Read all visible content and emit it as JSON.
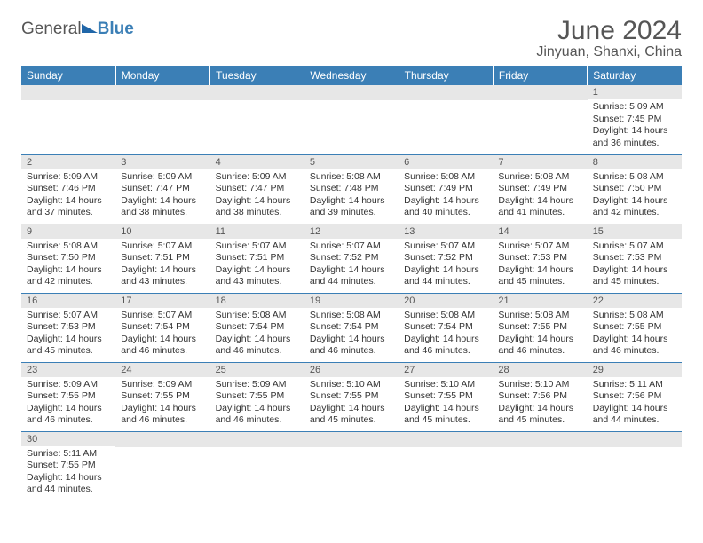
{
  "brand": {
    "part1": "General",
    "part2": "Blue"
  },
  "title": "June 2024",
  "location": "Jinyuan, Shanxi, China",
  "colors": {
    "header_bg": "#3b7fb6",
    "header_text": "#ffffff",
    "daynum_bg": "#e7e7e7",
    "cell_border": "#3b7fb6",
    "text": "#333333",
    "title_text": "#555555"
  },
  "typography": {
    "title_fontsize": 30,
    "location_fontsize": 16,
    "header_fontsize": 12,
    "daynum_fontsize": 11,
    "body_fontsize": 10.5
  },
  "dayHeaders": [
    "Sunday",
    "Monday",
    "Tuesday",
    "Wednesday",
    "Thursday",
    "Friday",
    "Saturday"
  ],
  "weeks": [
    [
      {
        "day": "",
        "sunrise": "",
        "sunset": "",
        "daylight": ""
      },
      {
        "day": "",
        "sunrise": "",
        "sunset": "",
        "daylight": ""
      },
      {
        "day": "",
        "sunrise": "",
        "sunset": "",
        "daylight": ""
      },
      {
        "day": "",
        "sunrise": "",
        "sunset": "",
        "daylight": ""
      },
      {
        "day": "",
        "sunrise": "",
        "sunset": "",
        "daylight": ""
      },
      {
        "day": "",
        "sunrise": "",
        "sunset": "",
        "daylight": ""
      },
      {
        "day": "1",
        "sunrise": "Sunrise: 5:09 AM",
        "sunset": "Sunset: 7:45 PM",
        "daylight": "Daylight: 14 hours and 36 minutes."
      }
    ],
    [
      {
        "day": "2",
        "sunrise": "Sunrise: 5:09 AM",
        "sunset": "Sunset: 7:46 PM",
        "daylight": "Daylight: 14 hours and 37 minutes."
      },
      {
        "day": "3",
        "sunrise": "Sunrise: 5:09 AM",
        "sunset": "Sunset: 7:47 PM",
        "daylight": "Daylight: 14 hours and 38 minutes."
      },
      {
        "day": "4",
        "sunrise": "Sunrise: 5:09 AM",
        "sunset": "Sunset: 7:47 PM",
        "daylight": "Daylight: 14 hours and 38 minutes."
      },
      {
        "day": "5",
        "sunrise": "Sunrise: 5:08 AM",
        "sunset": "Sunset: 7:48 PM",
        "daylight": "Daylight: 14 hours and 39 minutes."
      },
      {
        "day": "6",
        "sunrise": "Sunrise: 5:08 AM",
        "sunset": "Sunset: 7:49 PM",
        "daylight": "Daylight: 14 hours and 40 minutes."
      },
      {
        "day": "7",
        "sunrise": "Sunrise: 5:08 AM",
        "sunset": "Sunset: 7:49 PM",
        "daylight": "Daylight: 14 hours and 41 minutes."
      },
      {
        "day": "8",
        "sunrise": "Sunrise: 5:08 AM",
        "sunset": "Sunset: 7:50 PM",
        "daylight": "Daylight: 14 hours and 42 minutes."
      }
    ],
    [
      {
        "day": "9",
        "sunrise": "Sunrise: 5:08 AM",
        "sunset": "Sunset: 7:50 PM",
        "daylight": "Daylight: 14 hours and 42 minutes."
      },
      {
        "day": "10",
        "sunrise": "Sunrise: 5:07 AM",
        "sunset": "Sunset: 7:51 PM",
        "daylight": "Daylight: 14 hours and 43 minutes."
      },
      {
        "day": "11",
        "sunrise": "Sunrise: 5:07 AM",
        "sunset": "Sunset: 7:51 PM",
        "daylight": "Daylight: 14 hours and 43 minutes."
      },
      {
        "day": "12",
        "sunrise": "Sunrise: 5:07 AM",
        "sunset": "Sunset: 7:52 PM",
        "daylight": "Daylight: 14 hours and 44 minutes."
      },
      {
        "day": "13",
        "sunrise": "Sunrise: 5:07 AM",
        "sunset": "Sunset: 7:52 PM",
        "daylight": "Daylight: 14 hours and 44 minutes."
      },
      {
        "day": "14",
        "sunrise": "Sunrise: 5:07 AM",
        "sunset": "Sunset: 7:53 PM",
        "daylight": "Daylight: 14 hours and 45 minutes."
      },
      {
        "day": "15",
        "sunrise": "Sunrise: 5:07 AM",
        "sunset": "Sunset: 7:53 PM",
        "daylight": "Daylight: 14 hours and 45 minutes."
      }
    ],
    [
      {
        "day": "16",
        "sunrise": "Sunrise: 5:07 AM",
        "sunset": "Sunset: 7:53 PM",
        "daylight": "Daylight: 14 hours and 45 minutes."
      },
      {
        "day": "17",
        "sunrise": "Sunrise: 5:07 AM",
        "sunset": "Sunset: 7:54 PM",
        "daylight": "Daylight: 14 hours and 46 minutes."
      },
      {
        "day": "18",
        "sunrise": "Sunrise: 5:08 AM",
        "sunset": "Sunset: 7:54 PM",
        "daylight": "Daylight: 14 hours and 46 minutes."
      },
      {
        "day": "19",
        "sunrise": "Sunrise: 5:08 AM",
        "sunset": "Sunset: 7:54 PM",
        "daylight": "Daylight: 14 hours and 46 minutes."
      },
      {
        "day": "20",
        "sunrise": "Sunrise: 5:08 AM",
        "sunset": "Sunset: 7:54 PM",
        "daylight": "Daylight: 14 hours and 46 minutes."
      },
      {
        "day": "21",
        "sunrise": "Sunrise: 5:08 AM",
        "sunset": "Sunset: 7:55 PM",
        "daylight": "Daylight: 14 hours and 46 minutes."
      },
      {
        "day": "22",
        "sunrise": "Sunrise: 5:08 AM",
        "sunset": "Sunset: 7:55 PM",
        "daylight": "Daylight: 14 hours and 46 minutes."
      }
    ],
    [
      {
        "day": "23",
        "sunrise": "Sunrise: 5:09 AM",
        "sunset": "Sunset: 7:55 PM",
        "daylight": "Daylight: 14 hours and 46 minutes."
      },
      {
        "day": "24",
        "sunrise": "Sunrise: 5:09 AM",
        "sunset": "Sunset: 7:55 PM",
        "daylight": "Daylight: 14 hours and 46 minutes."
      },
      {
        "day": "25",
        "sunrise": "Sunrise: 5:09 AM",
        "sunset": "Sunset: 7:55 PM",
        "daylight": "Daylight: 14 hours and 46 minutes."
      },
      {
        "day": "26",
        "sunrise": "Sunrise: 5:10 AM",
        "sunset": "Sunset: 7:55 PM",
        "daylight": "Daylight: 14 hours and 45 minutes."
      },
      {
        "day": "27",
        "sunrise": "Sunrise: 5:10 AM",
        "sunset": "Sunset: 7:55 PM",
        "daylight": "Daylight: 14 hours and 45 minutes."
      },
      {
        "day": "28",
        "sunrise": "Sunrise: 5:10 AM",
        "sunset": "Sunset: 7:56 PM",
        "daylight": "Daylight: 14 hours and 45 minutes."
      },
      {
        "day": "29",
        "sunrise": "Sunrise: 5:11 AM",
        "sunset": "Sunset: 7:56 PM",
        "daylight": "Daylight: 14 hours and 44 minutes."
      }
    ],
    [
      {
        "day": "30",
        "sunrise": "Sunrise: 5:11 AM",
        "sunset": "Sunset: 7:55 PM",
        "daylight": "Daylight: 14 hours and 44 minutes."
      },
      {
        "day": "",
        "sunrise": "",
        "sunset": "",
        "daylight": ""
      },
      {
        "day": "",
        "sunrise": "",
        "sunset": "",
        "daylight": ""
      },
      {
        "day": "",
        "sunrise": "",
        "sunset": "",
        "daylight": ""
      },
      {
        "day": "",
        "sunrise": "",
        "sunset": "",
        "daylight": ""
      },
      {
        "day": "",
        "sunrise": "",
        "sunset": "",
        "daylight": ""
      },
      {
        "day": "",
        "sunrise": "",
        "sunset": "",
        "daylight": ""
      }
    ]
  ]
}
